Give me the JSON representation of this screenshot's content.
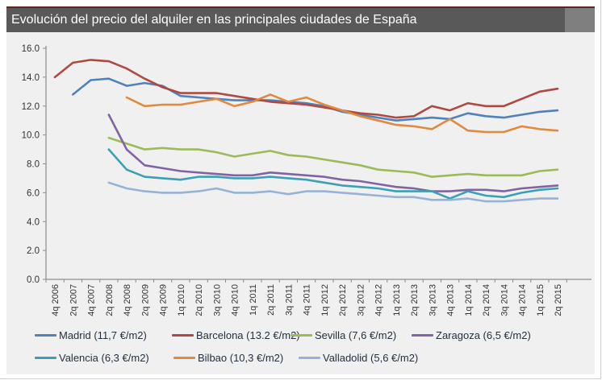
{
  "title": "Evolución del precio del alquiler en las principales ciudades de España",
  "colors": {
    "title_bar": "#595959",
    "title_bar_tail": "#7f7f7f",
    "top_stripe": "#622423",
    "chart_background": "#f0f0f0",
    "axis_line": "#8c8c8c",
    "tick_text": "#333333",
    "legend_text": "#23303f"
  },
  "chart_data": {
    "type": "line",
    "title": "Evolución del precio del alquiler en las principales ciudades de España",
    "xlabel": "",
    "ylabel": "",
    "ylim": [
      0,
      16
    ],
    "y_tick_labels": [
      "0.0",
      "2.0",
      "4.0",
      "6.0",
      "8.0",
      "10.0",
      "12.0",
      "14.0",
      "16.0"
    ],
    "grid": false,
    "legend_position": "bottom",
    "x_labels_rotated": true,
    "categories": [
      "4q 2006",
      "2q 2007",
      "4q 2007",
      "2q 2008",
      "4q 2008",
      "2q 2009",
      "4q 2009",
      "1q 2010",
      "2q 2010",
      "3q 2010",
      "4q 2010",
      "1q 2011",
      "2q 2011",
      "3q 2011",
      "4q 2011",
      "1q 2012",
      "2q 2012",
      "3q 2012",
      "4q 2012",
      "1q 2013",
      "2q 2013",
      "3q 2013",
      "4q 2013",
      "1q 2014",
      "2q 2014",
      "3q 2014",
      "4q 2014",
      "1q 2015",
      "2q 2015"
    ],
    "series": [
      {
        "name": "Madrid",
        "legend_label": "Madrid (11,7 €/m2)",
        "color": "#4f81bd",
        "values": [
          null,
          12.8,
          13.8,
          13.9,
          13.4,
          13.6,
          13.4,
          12.7,
          12.6,
          12.5,
          12.4,
          12.4,
          12.4,
          12.3,
          12.2,
          12.0,
          11.6,
          11.4,
          11.2,
          11.0,
          11.1,
          11.2,
          11.1,
          11.5,
          11.3,
          11.2,
          11.4,
          11.6,
          11.7
        ]
      },
      {
        "name": "Barcelona",
        "legend_label": "Barcelona (13.2 €/m2)",
        "color": "#ae4a42",
        "values": [
          14.0,
          15.0,
          15.2,
          15.1,
          14.6,
          13.9,
          13.3,
          12.9,
          12.9,
          12.9,
          12.7,
          12.5,
          12.3,
          12.2,
          12.1,
          11.9,
          11.7,
          11.5,
          11.4,
          11.2,
          11.3,
          12.0,
          11.7,
          12.2,
          12.0,
          12.0,
          12.5,
          13.0,
          13.2
        ]
      },
      {
        "name": "Sevilla",
        "legend_label": "Sevilla (7,6 €/m2)",
        "color": "#9bbb59",
        "values": [
          null,
          null,
          null,
          9.8,
          9.4,
          9.0,
          9.1,
          9.0,
          9.0,
          8.8,
          8.5,
          8.7,
          8.9,
          8.6,
          8.5,
          8.3,
          8.1,
          7.9,
          7.6,
          7.5,
          7.4,
          7.1,
          7.2,
          7.3,
          7.2,
          7.2,
          7.2,
          7.5,
          7.6
        ]
      },
      {
        "name": "Zaragoza",
        "legend_label": "Zaragoza (6,5 €/m2)",
        "color": "#8064a2",
        "values": [
          null,
          null,
          null,
          11.4,
          9.0,
          7.9,
          7.7,
          7.5,
          7.4,
          7.3,
          7.2,
          7.2,
          7.4,
          7.3,
          7.2,
          7.1,
          6.9,
          6.8,
          6.6,
          6.4,
          6.3,
          6.1,
          6.1,
          6.2,
          6.2,
          6.1,
          6.3,
          6.4,
          6.5
        ]
      },
      {
        "name": "Valencia",
        "legend_label": "Valencia (6,3 €/m2)",
        "color": "#3ba0b5",
        "values": [
          null,
          null,
          null,
          9.0,
          7.6,
          7.1,
          7.0,
          6.9,
          7.1,
          7.1,
          7.0,
          7.0,
          7.1,
          7.0,
          6.9,
          6.7,
          6.5,
          6.4,
          6.3,
          6.1,
          6.1,
          6.1,
          5.6,
          6.1,
          5.8,
          5.7,
          6.0,
          6.2,
          6.3
        ]
      },
      {
        "name": "Bilbao",
        "legend_label": "Bilbao (10,3 €/m2)",
        "color": "#e1893e",
        "values": [
          null,
          null,
          null,
          null,
          12.6,
          12.0,
          12.1,
          12.1,
          12.3,
          12.5,
          12.0,
          12.3,
          12.8,
          12.3,
          12.6,
          12.1,
          11.7,
          11.3,
          11.0,
          10.7,
          10.6,
          10.4,
          11.1,
          10.3,
          10.2,
          10.2,
          10.6,
          10.4,
          10.3
        ]
      },
      {
        "name": "Valladolid",
        "legend_label": "Valladolid (5,6 €/m2)",
        "color": "#95b3d7",
        "values": [
          null,
          null,
          null,
          6.7,
          6.3,
          6.1,
          6.0,
          6.0,
          6.1,
          6.3,
          6.0,
          6.0,
          6.1,
          5.9,
          6.1,
          6.1,
          6.0,
          5.9,
          5.8,
          5.7,
          5.7,
          5.5,
          5.5,
          5.6,
          5.4,
          5.4,
          5.5,
          5.6,
          5.6
        ]
      }
    ]
  }
}
